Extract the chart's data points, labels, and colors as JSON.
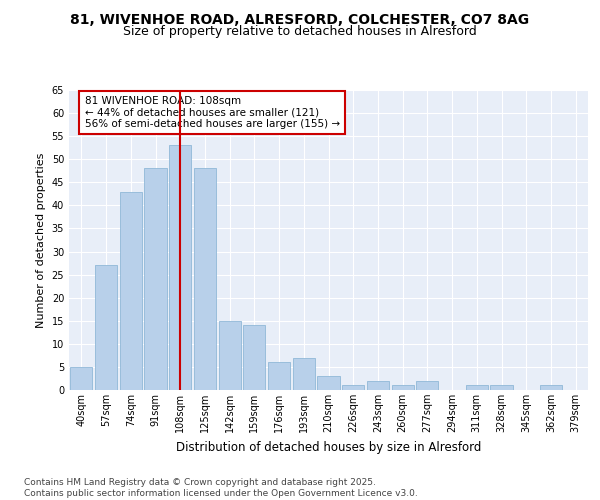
{
  "title": "81, WIVENHOE ROAD, ALRESFORD, COLCHESTER, CO7 8AG",
  "subtitle": "Size of property relative to detached houses in Alresford",
  "xlabel": "Distribution of detached houses by size in Alresford",
  "ylabel": "Number of detached properties",
  "categories": [
    "40sqm",
    "57sqm",
    "74sqm",
    "91sqm",
    "108sqm",
    "125sqm",
    "142sqm",
    "159sqm",
    "176sqm",
    "193sqm",
    "210sqm",
    "226sqm",
    "243sqm",
    "260sqm",
    "277sqm",
    "294sqm",
    "311sqm",
    "328sqm",
    "345sqm",
    "362sqm",
    "379sqm"
  ],
  "values": [
    5,
    27,
    43,
    48,
    53,
    48,
    15,
    14,
    6,
    7,
    3,
    1,
    2,
    1,
    2,
    0,
    1,
    1,
    0,
    1,
    0
  ],
  "bar_color": "#b8d0ea",
  "bar_edge_color": "#90b8d8",
  "vline_x": 4,
  "vline_color": "#cc0000",
  "annotation_text": "81 WIVENHOE ROAD: 108sqm\n← 44% of detached houses are smaller (121)\n56% of semi-detached houses are larger (155) →",
  "annotation_box_color": "#ffffff",
  "annotation_box_edge_color": "#cc0000",
  "ylim": [
    0,
    65
  ],
  "yticks": [
    0,
    5,
    10,
    15,
    20,
    25,
    30,
    35,
    40,
    45,
    50,
    55,
    60,
    65
  ],
  "background_color": "#e8eef8",
  "grid_color": "#ffffff",
  "footer_text": "Contains HM Land Registry data © Crown copyright and database right 2025.\nContains public sector information licensed under the Open Government Licence v3.0.",
  "title_fontsize": 10,
  "subtitle_fontsize": 9,
  "xlabel_fontsize": 8.5,
  "ylabel_fontsize": 8,
  "tick_fontsize": 7,
  "annotation_fontsize": 7.5,
  "footer_fontsize": 6.5
}
